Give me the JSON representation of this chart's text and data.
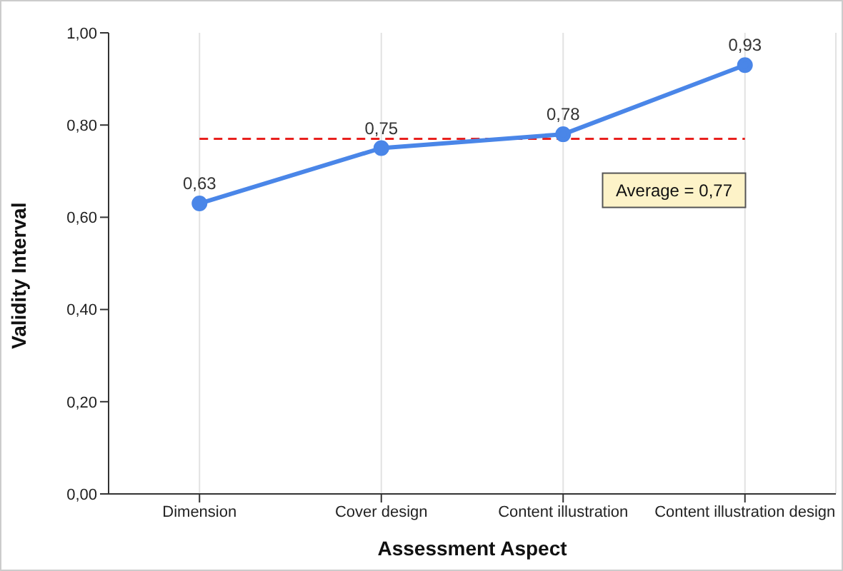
{
  "chart_data": {
    "type": "line",
    "xlabel": "Assessment Aspect",
    "ylabel": "Validity  Interval",
    "categories": [
      "Dimension",
      "Cover design",
      "Content illustration",
      "Content illustration design"
    ],
    "series": [
      {
        "color": "#4a86e8",
        "values": [
          0.63,
          0.75,
          0.78,
          0.93
        ],
        "value_labels": [
          "0,63",
          "0,75",
          "0,78",
          "0,93"
        ]
      }
    ],
    "ylim": [
      0,
      1
    ],
    "yticks": [
      {
        "value": 0,
        "label": "0,00"
      },
      {
        "value": 0.2,
        "label": "0,20"
      },
      {
        "value": 0.4,
        "label": "0,40"
      },
      {
        "value": 0.6,
        "label": "0,60"
      },
      {
        "value": 0.8,
        "label": "0,80"
      },
      {
        "value": 1,
        "label": "1,00"
      }
    ],
    "ref_lines": [
      {
        "axis": "y",
        "value": 0.77,
        "label": "Average = 0,77",
        "color": "#e8201e",
        "line_style": "dashed"
      }
    ],
    "grid": "x",
    "marker": "circle",
    "line_style": "solid"
  }
}
